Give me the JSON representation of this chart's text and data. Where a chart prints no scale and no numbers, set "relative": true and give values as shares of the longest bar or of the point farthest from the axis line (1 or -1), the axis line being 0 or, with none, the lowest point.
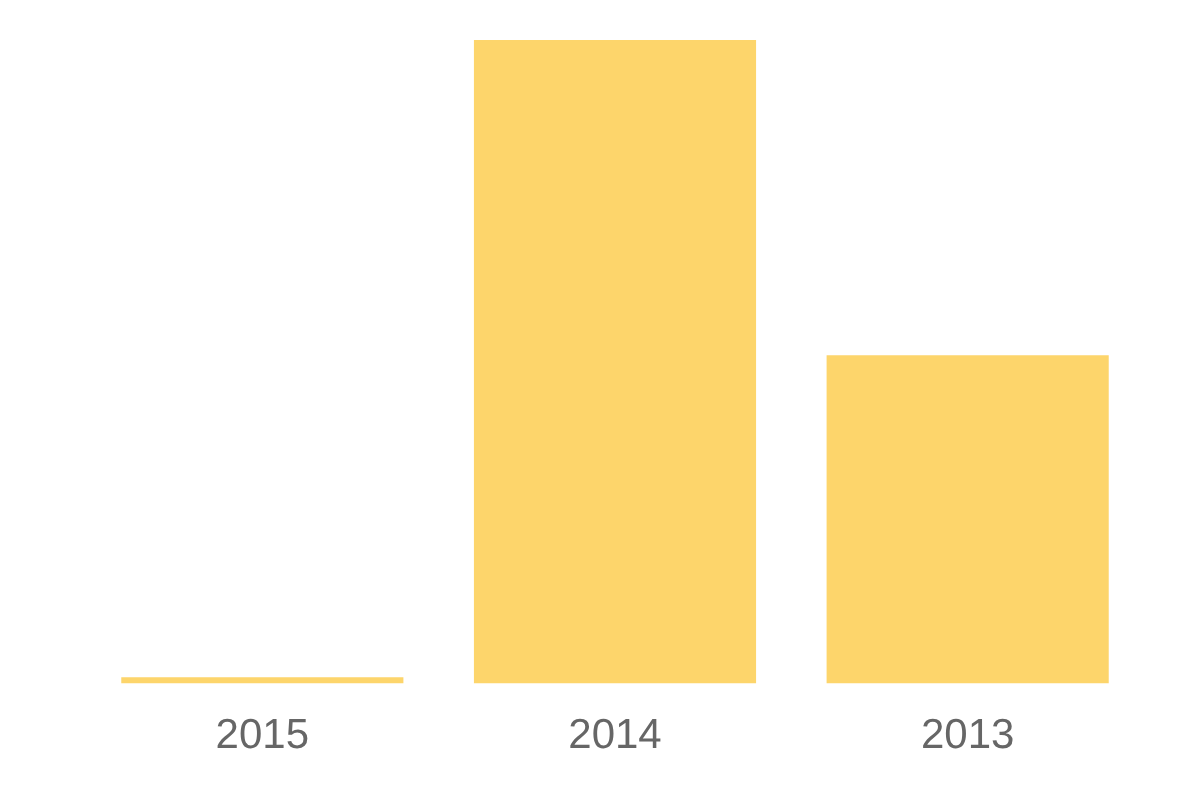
{
  "chart_data": {
    "type": "bar",
    "relative": true,
    "categories": [
      "2015",
      "2014",
      "2013"
    ],
    "values": [
      0.01,
      1,
      0.51
    ],
    "color": "#fdd56b",
    "grid": false
  }
}
